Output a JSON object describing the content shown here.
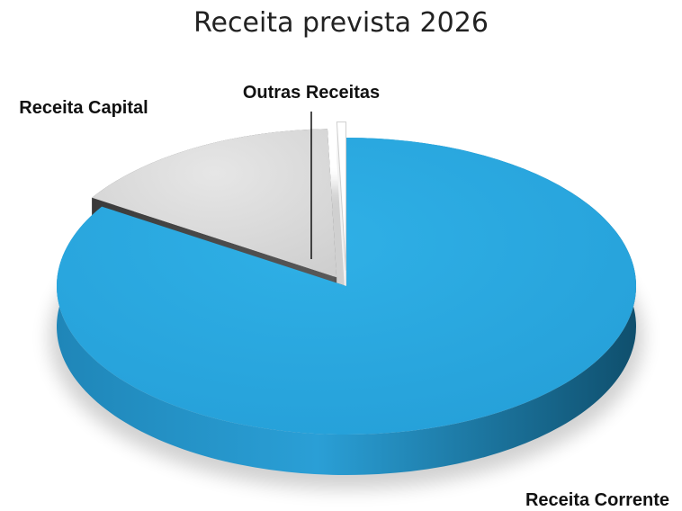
{
  "chart_data": {
    "type": "pie",
    "title": "Receita prevista 2026",
    "categories": [
      "Receita Corrente",
      "Receita Capital",
      "Outras Receitas"
    ],
    "values": [
      84.0,
      15.5,
      0.5
    ],
    "value_unit": "%",
    "style": "3d-exploded",
    "legend": "none",
    "colors": {
      "Receita Corrente": "#29ABE2",
      "Receita Capital": "#D9D9D9",
      "Outras Receitas": "#FFFFFF"
    }
  }
}
